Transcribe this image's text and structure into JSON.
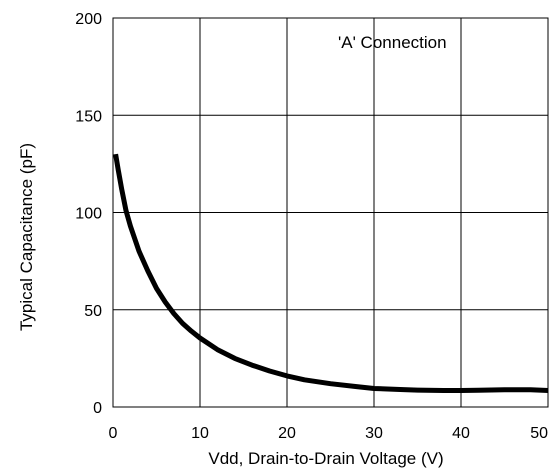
{
  "chart_data": {
    "type": "line",
    "xlabel": "Vdd, Drain-to-Drain Voltage (V)",
    "ylabel": "Typical Capacitance (pF)",
    "xlim": [
      0,
      50
    ],
    "ylim": [
      0,
      200
    ],
    "x_ticks": [
      "0",
      "10",
      "20",
      "30",
      "40",
      "50"
    ],
    "y_ticks": [
      "0",
      "50",
      "100",
      "150",
      "200"
    ],
    "grid": true,
    "annotation": "'A' Connection",
    "line_color": "#000000",
    "series": [
      {
        "x": [
          0.3,
          0.6,
          1,
          1.5,
          2,
          3,
          4,
          5,
          6,
          7,
          8,
          9,
          10,
          12,
          14,
          16,
          18,
          20,
          22,
          25,
          28,
          30,
          33,
          35,
          38,
          40,
          42,
          45,
          48,
          50
        ],
        "y": [
          130,
          122,
          112,
          101,
          93,
          80,
          70,
          61,
          54,
          48,
          43,
          39,
          35.5,
          29.5,
          25,
          21.5,
          18.5,
          16,
          14,
          12,
          10.5,
          9.5,
          9,
          8.7,
          8.5,
          8.5,
          8.6,
          8.9,
          8.9,
          8.5
        ]
      }
    ]
  }
}
